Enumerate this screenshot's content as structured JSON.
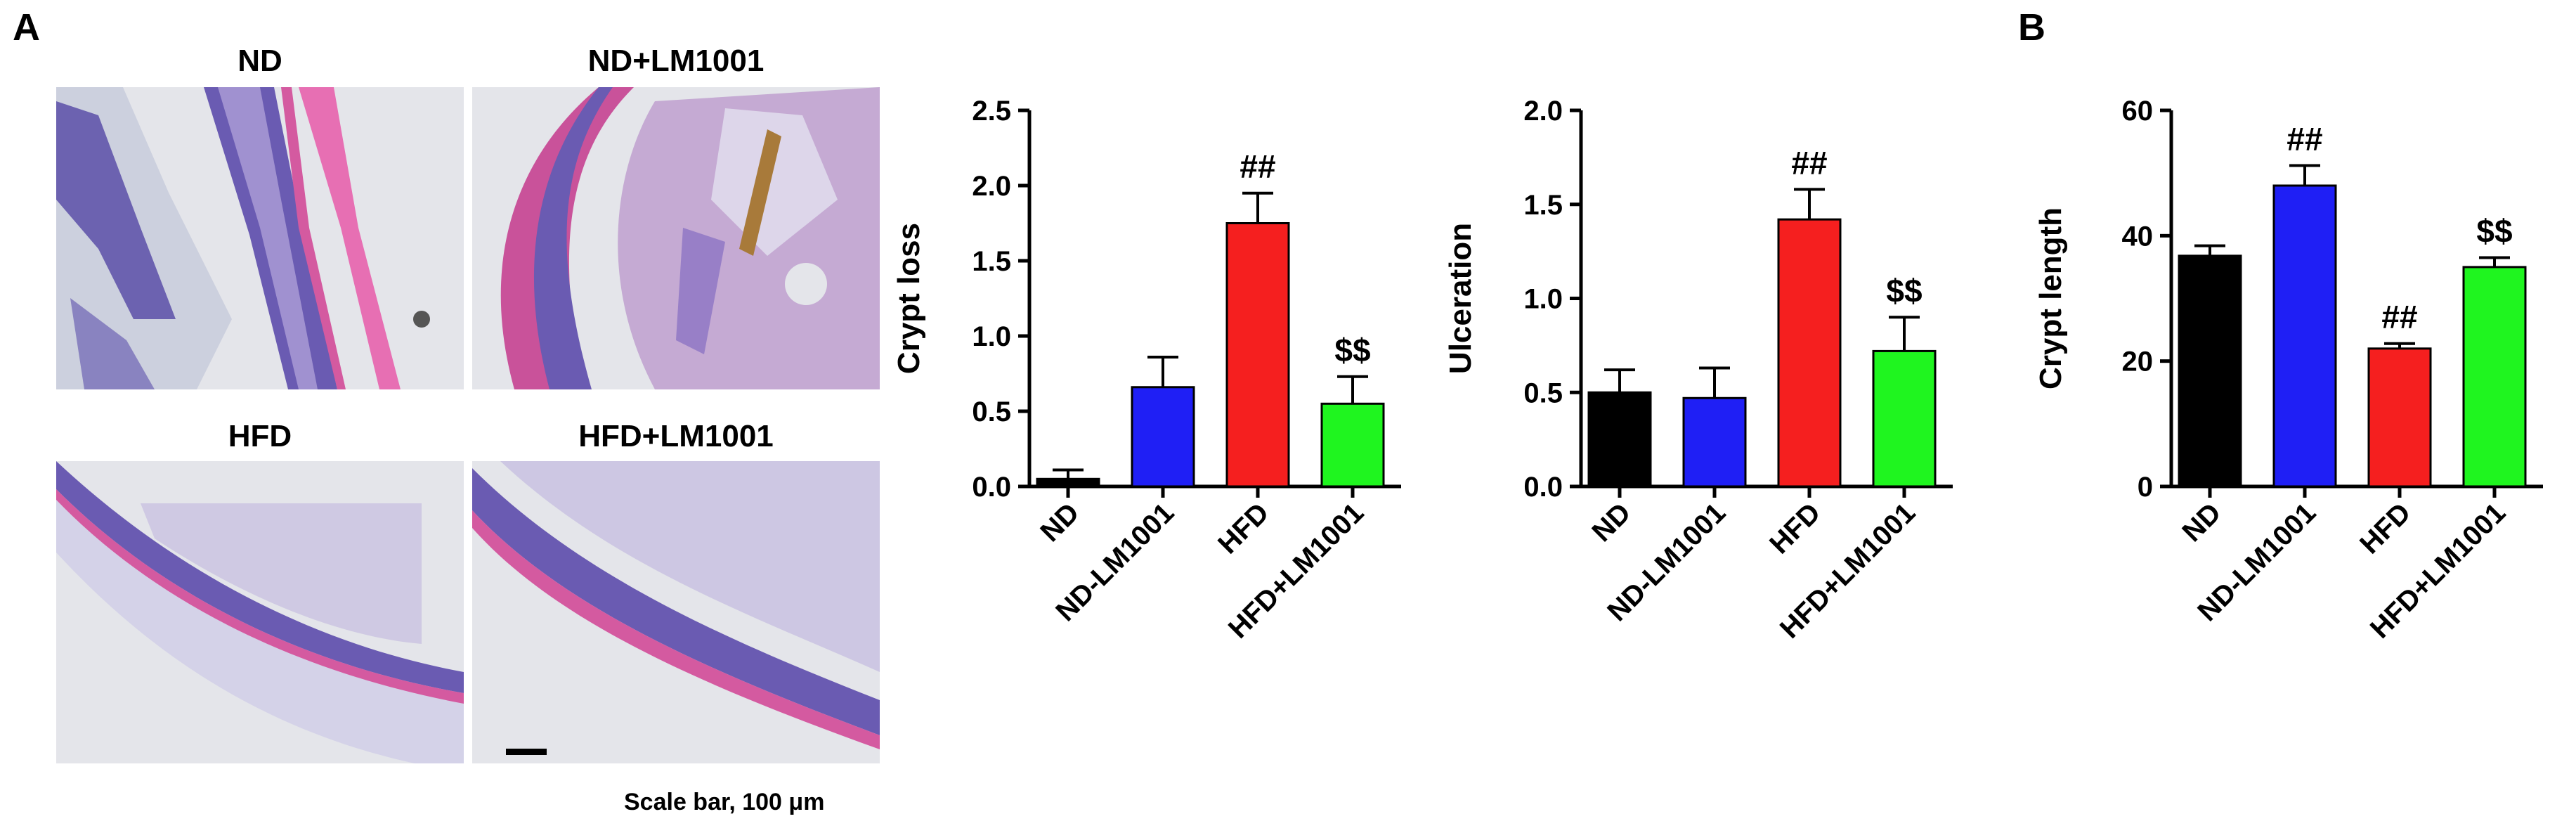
{
  "panels": {
    "a_letter": "A",
    "b_letter": "B"
  },
  "micrographs": {
    "labels": [
      "ND",
      "ND+LM1001",
      "HFD",
      "HFD+LM1001"
    ],
    "scale_text": "Scale bar, 100 μm",
    "stain_colors": {
      "background": "#e4e5ea",
      "tissue_purple": "#5a4fa8",
      "tissue_pink": "#c9529a",
      "lumen_content": "#b48ac6",
      "brown_debris": "#a87a3a"
    }
  },
  "chart_data": [
    {
      "type": "bar",
      "title": "",
      "xlabel": "",
      "ylabel": "Crypt loss",
      "ylim": [
        0,
        2.5
      ],
      "yticks": [
        "0.0",
        "0.5",
        "1.0",
        "1.5",
        "2.0",
        "2.5"
      ],
      "categories": [
        "ND",
        "ND-LM1001",
        "HFD",
        "HFD+LM1001"
      ],
      "values": [
        0.05,
        0.66,
        1.75,
        0.55
      ],
      "errors": [
        0.06,
        0.2,
        0.2,
        0.18
      ],
      "annotations": [
        "",
        "",
        "##",
        "$$"
      ],
      "colors": [
        "#000000",
        "#1f1ff5",
        "#f51f1f",
        "#1ff51f"
      ],
      "grid": false
    },
    {
      "type": "bar",
      "title": "",
      "xlabel": "",
      "ylabel": "Ulceration",
      "ylim": [
        0,
        2.0
      ],
      "yticks": [
        "0.0",
        "0.5",
        "1.0",
        "1.5",
        "2.0"
      ],
      "categories": [
        "ND",
        "ND-LM1001",
        "HFD",
        "HFD+LM1001"
      ],
      "values": [
        0.5,
        0.47,
        1.42,
        0.72
      ],
      "errors": [
        0.12,
        0.16,
        0.16,
        0.18
      ],
      "annotations": [
        "",
        "",
        "##",
        "$$"
      ],
      "colors": [
        "#000000",
        "#1f1ff5",
        "#f51f1f",
        "#1ff51f"
      ],
      "grid": false
    },
    {
      "type": "bar",
      "title": "",
      "xlabel": "",
      "ylabel": "Crypt length",
      "ylim": [
        0,
        60
      ],
      "yticks": [
        "0",
        "20",
        "40",
        "60"
      ],
      "categories": [
        "ND",
        "ND-LM1001",
        "HFD",
        "HFD+LM1001"
      ],
      "values": [
        36.8,
        48.0,
        22.0,
        35.0
      ],
      "errors": [
        1.6,
        3.2,
        0.8,
        1.5
      ],
      "annotations": [
        "",
        "##",
        "##",
        "$$"
      ],
      "colors": [
        "#000000",
        "#1f1ff5",
        "#f51f1f",
        "#1ff51f"
      ],
      "grid": false
    }
  ]
}
